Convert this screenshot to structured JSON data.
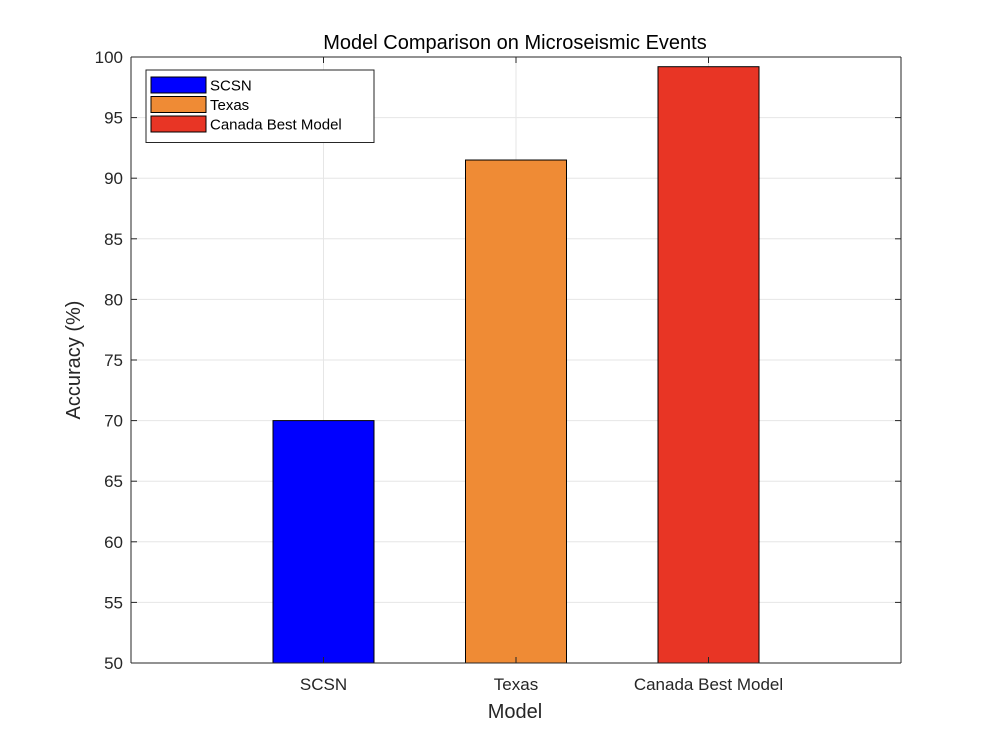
{
  "chart_data": {
    "type": "bar",
    "title": "Model Comparison on Microseismic Events",
    "xlabel": "Model",
    "ylabel": "Accuracy (%)",
    "categories": [
      "SCSN",
      "Texas",
      "Canada Best Model"
    ],
    "values": [
      70,
      91.5,
      99.2
    ],
    "colors": [
      "#0000ff",
      "#ef8b35",
      "#e83525"
    ],
    "ylim": [
      50,
      100
    ],
    "yticks": [
      50,
      55,
      60,
      65,
      70,
      75,
      80,
      85,
      90,
      95,
      100
    ],
    "grid": true,
    "legend": {
      "position": "top-left",
      "entries": [
        "SCSN",
        "Texas",
        "Canada Best Model"
      ]
    }
  }
}
